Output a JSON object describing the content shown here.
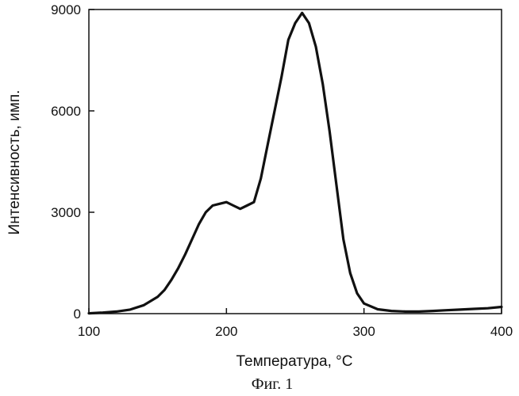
{
  "chart_data": {
    "type": "line",
    "title": "",
    "xlabel": "Температура, °C",
    "ylabel": "Интенсивность, имп.",
    "xlim": [
      100,
      400
    ],
    "ylim": [
      0,
      9000
    ],
    "x_ticks": [
      100,
      200,
      300,
      400
    ],
    "y_ticks": [
      0,
      3000,
      6000,
      9000
    ],
    "x_tick_labels": [
      "100",
      "200",
      "300",
      "400"
    ],
    "y_tick_labels": [
      "0",
      "3000",
      "6000",
      "9000"
    ],
    "grid": false,
    "legend": "none",
    "caption": "Фиг. 1",
    "line_color": "#111111",
    "series": [
      {
        "x": [
          100,
          110,
          120,
          130,
          140,
          150,
          155,
          160,
          165,
          170,
          175,
          180,
          185,
          190,
          195,
          200,
          205,
          210,
          215,
          220,
          225,
          230,
          235,
          240,
          245,
          250,
          255,
          260,
          265,
          270,
          275,
          280,
          285,
          290,
          295,
          300,
          310,
          320,
          330,
          340,
          350,
          360,
          370,
          380,
          390,
          400
        ],
        "y": [
          10,
          30,
          60,
          120,
          250,
          500,
          700,
          1000,
          1350,
          1750,
          2200,
          2650,
          3000,
          3200,
          3250,
          3300,
          3200,
          3100,
          3200,
          3300,
          4000,
          5000,
          6000,
          7000,
          8100,
          8600,
          8900,
          8600,
          7900,
          6800,
          5400,
          3800,
          2200,
          1200,
          600,
          300,
          130,
          80,
          60,
          60,
          80,
          100,
          120,
          140,
          160,
          200
        ]
      }
    ]
  }
}
